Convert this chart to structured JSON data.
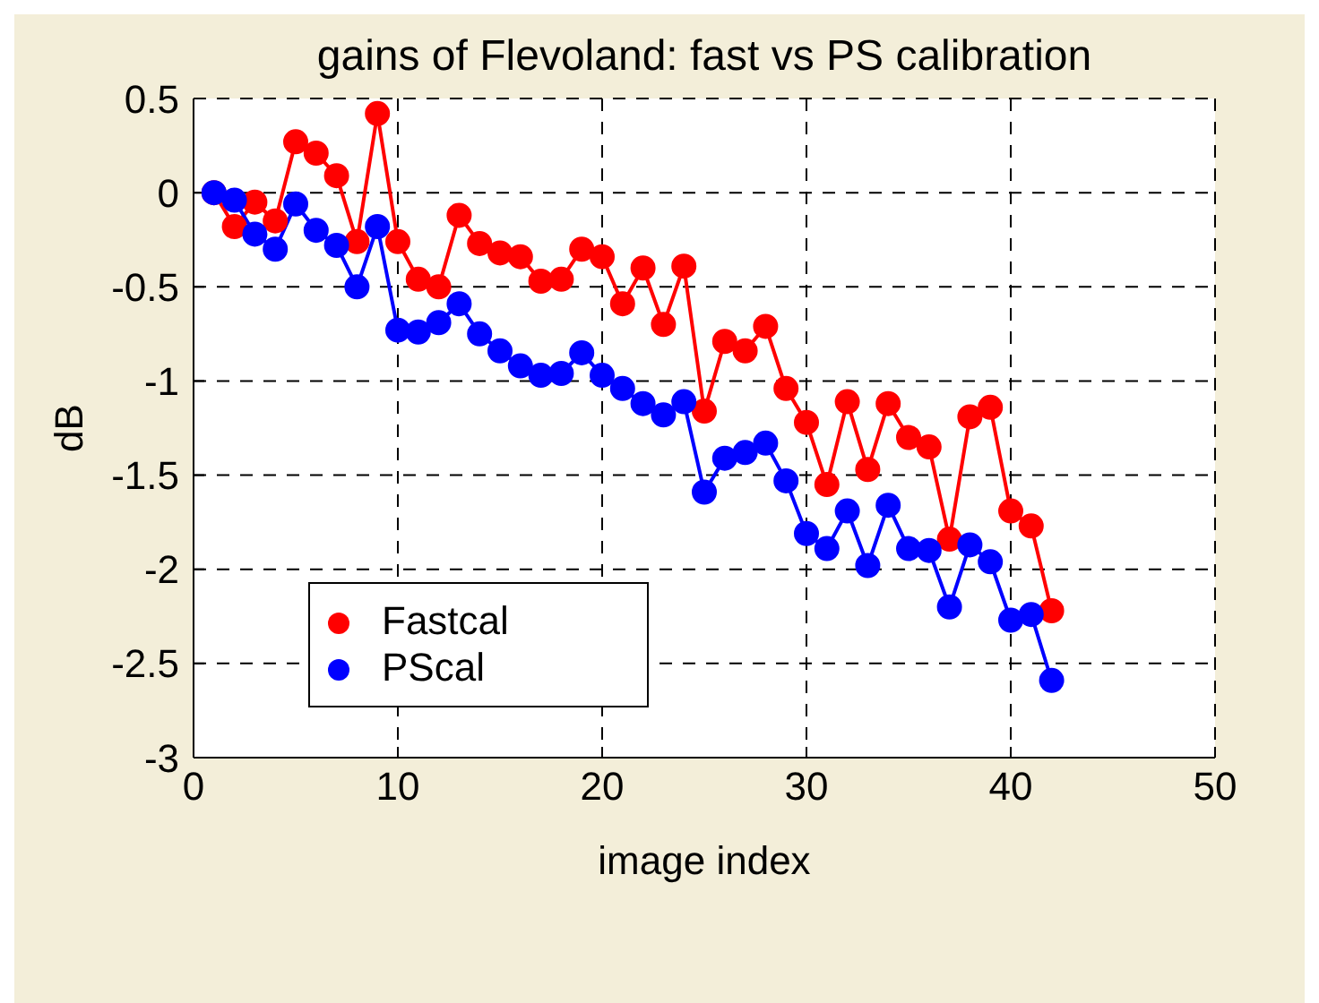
{
  "chart_data": {
    "type": "line",
    "title": "gains of Flevoland: fast vs PS calibration",
    "xlabel": "image index",
    "ylabel": "dB",
    "x": [
      1,
      2,
      3,
      4,
      5,
      6,
      7,
      8,
      9,
      10,
      11,
      12,
      13,
      14,
      15,
      16,
      17,
      18,
      19,
      20,
      21,
      22,
      23,
      24,
      25,
      26,
      27,
      28,
      29,
      30,
      31,
      32,
      33,
      34,
      35,
      36,
      37,
      38,
      39,
      40,
      41,
      42
    ],
    "series": [
      {
        "name": "Fastcal",
        "color": "#ff0000",
        "values": [
          0,
          -0.18,
          -0.05,
          -0.15,
          0.27,
          0.21,
          0.09,
          -0.26,
          0.42,
          -0.26,
          -0.46,
          -0.5,
          -0.12,
          -0.27,
          -0.32,
          -0.34,
          -0.47,
          -0.46,
          -0.3,
          -0.34,
          -0.59,
          -0.4,
          -0.7,
          -0.39,
          -1.16,
          -0.79,
          -0.84,
          -0.71,
          -1.04,
          -1.22,
          -1.55,
          -1.11,
          -1.47,
          -1.12,
          -1.3,
          -1.35,
          -1.84,
          -1.19,
          -1.14,
          -1.69,
          -1.77,
          -2.22
        ]
      },
      {
        "name": "PScal",
        "color": "#0000ff",
        "values": [
          0,
          -0.04,
          -0.22,
          -0.3,
          -0.06,
          -0.2,
          -0.28,
          -0.5,
          -0.18,
          -0.73,
          -0.74,
          -0.69,
          -0.59,
          -0.75,
          -0.84,
          -0.92,
          -0.97,
          -0.96,
          -0.85,
          -0.97,
          -1.04,
          -1.12,
          -1.18,
          -1.11,
          -1.59,
          -1.41,
          -1.38,
          -1.33,
          -1.53,
          -1.81,
          -1.89,
          -1.69,
          -1.98,
          -1.66,
          -1.89,
          -1.9,
          -2.2,
          -1.87,
          -1.96,
          -2.27,
          -2.24,
          -2.59
        ]
      }
    ],
    "xlim": [
      0,
      50
    ],
    "xticks": [
      0,
      10,
      20,
      30,
      40,
      50
    ],
    "ylim": [
      -3,
      0.5
    ],
    "yticks": [
      -3,
      -2.5,
      -2,
      -1.5,
      -1,
      -0.5,
      0,
      0.5
    ],
    "grid": true,
    "legend": "bottom left",
    "marker": "circle",
    "line_style": "solid"
  }
}
